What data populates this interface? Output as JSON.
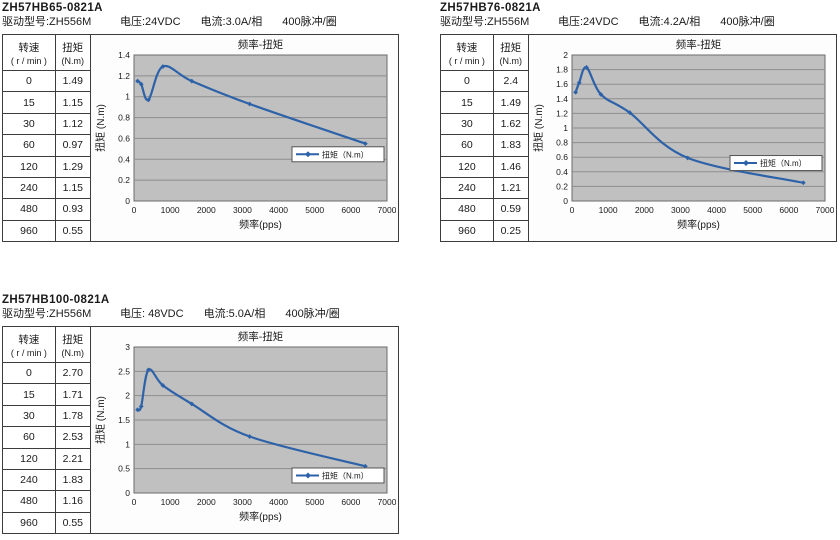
{
  "page": {
    "background": "#ffffff"
  },
  "panels": [
    {
      "model": "ZH57HB65-0821A",
      "driver": "驱动型号:ZH556M",
      "voltage": "电压:24VDC",
      "current": "电流:3.0A/相",
      "pulses": "400脉冲/圈",
      "table": {
        "col1_title": "转速",
        "col1_sub": "( r / min )",
        "col2_title": "扭矩",
        "col2_sub": "(N.m)",
        "rows": [
          [
            "0",
            "1.49"
          ],
          [
            "15",
            "1.15"
          ],
          [
            "30",
            "1.12"
          ],
          [
            "60",
            "0.97"
          ],
          [
            "120",
            "1.29"
          ],
          [
            "240",
            "1.15"
          ],
          [
            "480",
            "0.93"
          ],
          [
            "960",
            "0.55"
          ]
        ]
      }
    },
    {
      "model": "ZH57HB76-0821A",
      "driver": "驱动型号:ZH556M",
      "voltage": "电压:24VDC",
      "current": "电流:4.2A/相",
      "pulses": "400脉冲/圈",
      "table": {
        "col1_title": "转速",
        "col1_sub": "( r / min )",
        "col2_title": "扭矩",
        "col2_sub": "(N.m)",
        "rows": [
          [
            "0",
            "2.4"
          ],
          [
            "15",
            "1.49"
          ],
          [
            "30",
            "1.62"
          ],
          [
            "60",
            "1.83"
          ],
          [
            "120",
            "1.46"
          ],
          [
            "240",
            "1.21"
          ],
          [
            "480",
            "0.59"
          ],
          [
            "960",
            "0.25"
          ]
        ]
      }
    },
    {
      "model": "ZH57HB100-0821A",
      "driver": "驱动型号:ZH556M",
      "voltage": "电压: 48VDC",
      "current": "电流:5.0A/相",
      "pulses": "400脉冲/圈",
      "table": {
        "col1_title": "转速",
        "col1_sub": "( r / min )",
        "col2_title": "扭矩",
        "col2_sub": "(N.m)",
        "rows": [
          [
            "0",
            "2.70"
          ],
          [
            "15",
            "1.71"
          ],
          [
            "30",
            "1.78"
          ],
          [
            "60",
            "2.53"
          ],
          [
            "120",
            "2.21"
          ],
          [
            "240",
            "1.83"
          ],
          [
            "480",
            "1.16"
          ],
          [
            "960",
            "0.55"
          ]
        ]
      }
    }
  ],
  "chart_data": [
    {
      "type": "line",
      "title": "频率-扭矩",
      "xlabel": "频率(pps)",
      "ylabel": "扭矩 (N.m)",
      "x": [
        100,
        200,
        400,
        800,
        1600,
        3200,
        6400
      ],
      "series": [
        {
          "name": "扭矩（N.m）",
          "values": [
            1.15,
            1.12,
            0.97,
            1.29,
            1.15,
            0.93,
            0.55
          ]
        }
      ],
      "xlim": [
        0,
        7000
      ],
      "ylim": [
        0,
        1.4
      ],
      "xtick_step": 1000,
      "ytick_step": 0.2,
      "grid": "horizontal",
      "legend_position": "inside-right",
      "legend_y_frac": 0.68,
      "line_color": "#2e62a8",
      "plot_bg": "#c0c0c0",
      "grid_color": "#8d8d8d"
    },
    {
      "type": "line",
      "title": "频率-扭矩",
      "xlabel": "频率(pps)",
      "ylabel": "扭矩 (N.m)",
      "x": [
        100,
        200,
        400,
        800,
        1600,
        3200,
        6400
      ],
      "series": [
        {
          "name": "扭矩（N.m）",
          "values": [
            1.49,
            1.62,
            1.83,
            1.46,
            1.21,
            0.59,
            0.25
          ]
        }
      ],
      "xlim": [
        0,
        7000
      ],
      "ylim": [
        0,
        2
      ],
      "xtick_step": 1000,
      "ytick_step": 0.2,
      "grid": "horizontal",
      "legend_position": "inside-right",
      "legend_y_frac": 0.74,
      "line_color": "#2e62a8",
      "plot_bg": "#c0c0c0",
      "grid_color": "#8d8d8d"
    },
    {
      "type": "line",
      "title": "频率-扭矩",
      "xlabel": "频率(pps)",
      "ylabel": "扭矩 (N.m)",
      "x": [
        100,
        200,
        400,
        800,
        1600,
        3200,
        6400
      ],
      "series": [
        {
          "name": "扭矩（N.m）",
          "values": [
            1.71,
            1.78,
            2.53,
            2.21,
            1.83,
            1.16,
            0.55
          ]
        }
      ],
      "xlim": [
        0,
        7000
      ],
      "ylim": [
        0,
        3
      ],
      "xtick_step": 1000,
      "ytick_step": 0.5,
      "grid": "horizontal",
      "legend_position": "inside-right",
      "legend_y_frac": 0.88,
      "line_color": "#2e62a8",
      "plot_bg": "#c0c0c0",
      "grid_color": "#8d8d8d"
    }
  ]
}
